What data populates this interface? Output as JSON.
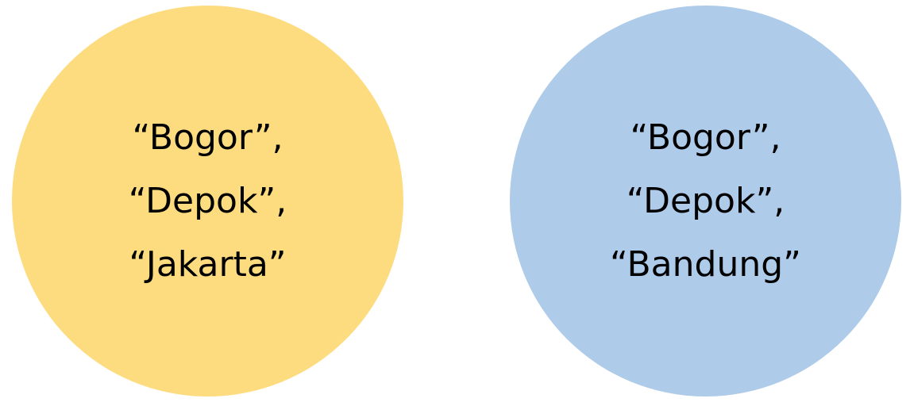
{
  "colors": {
    "left_circle": "#FDDC80",
    "right_circle": "#AECBEA",
    "text": "#000000",
    "background": "#FFFFFF"
  },
  "left_set": {
    "items": [
      "“Bogor”,",
      "“Depok”,",
      "“Jakarta”"
    ]
  },
  "right_set": {
    "items": [
      "“Bogor”,",
      "“Depok”,",
      "“Bandung”"
    ]
  }
}
